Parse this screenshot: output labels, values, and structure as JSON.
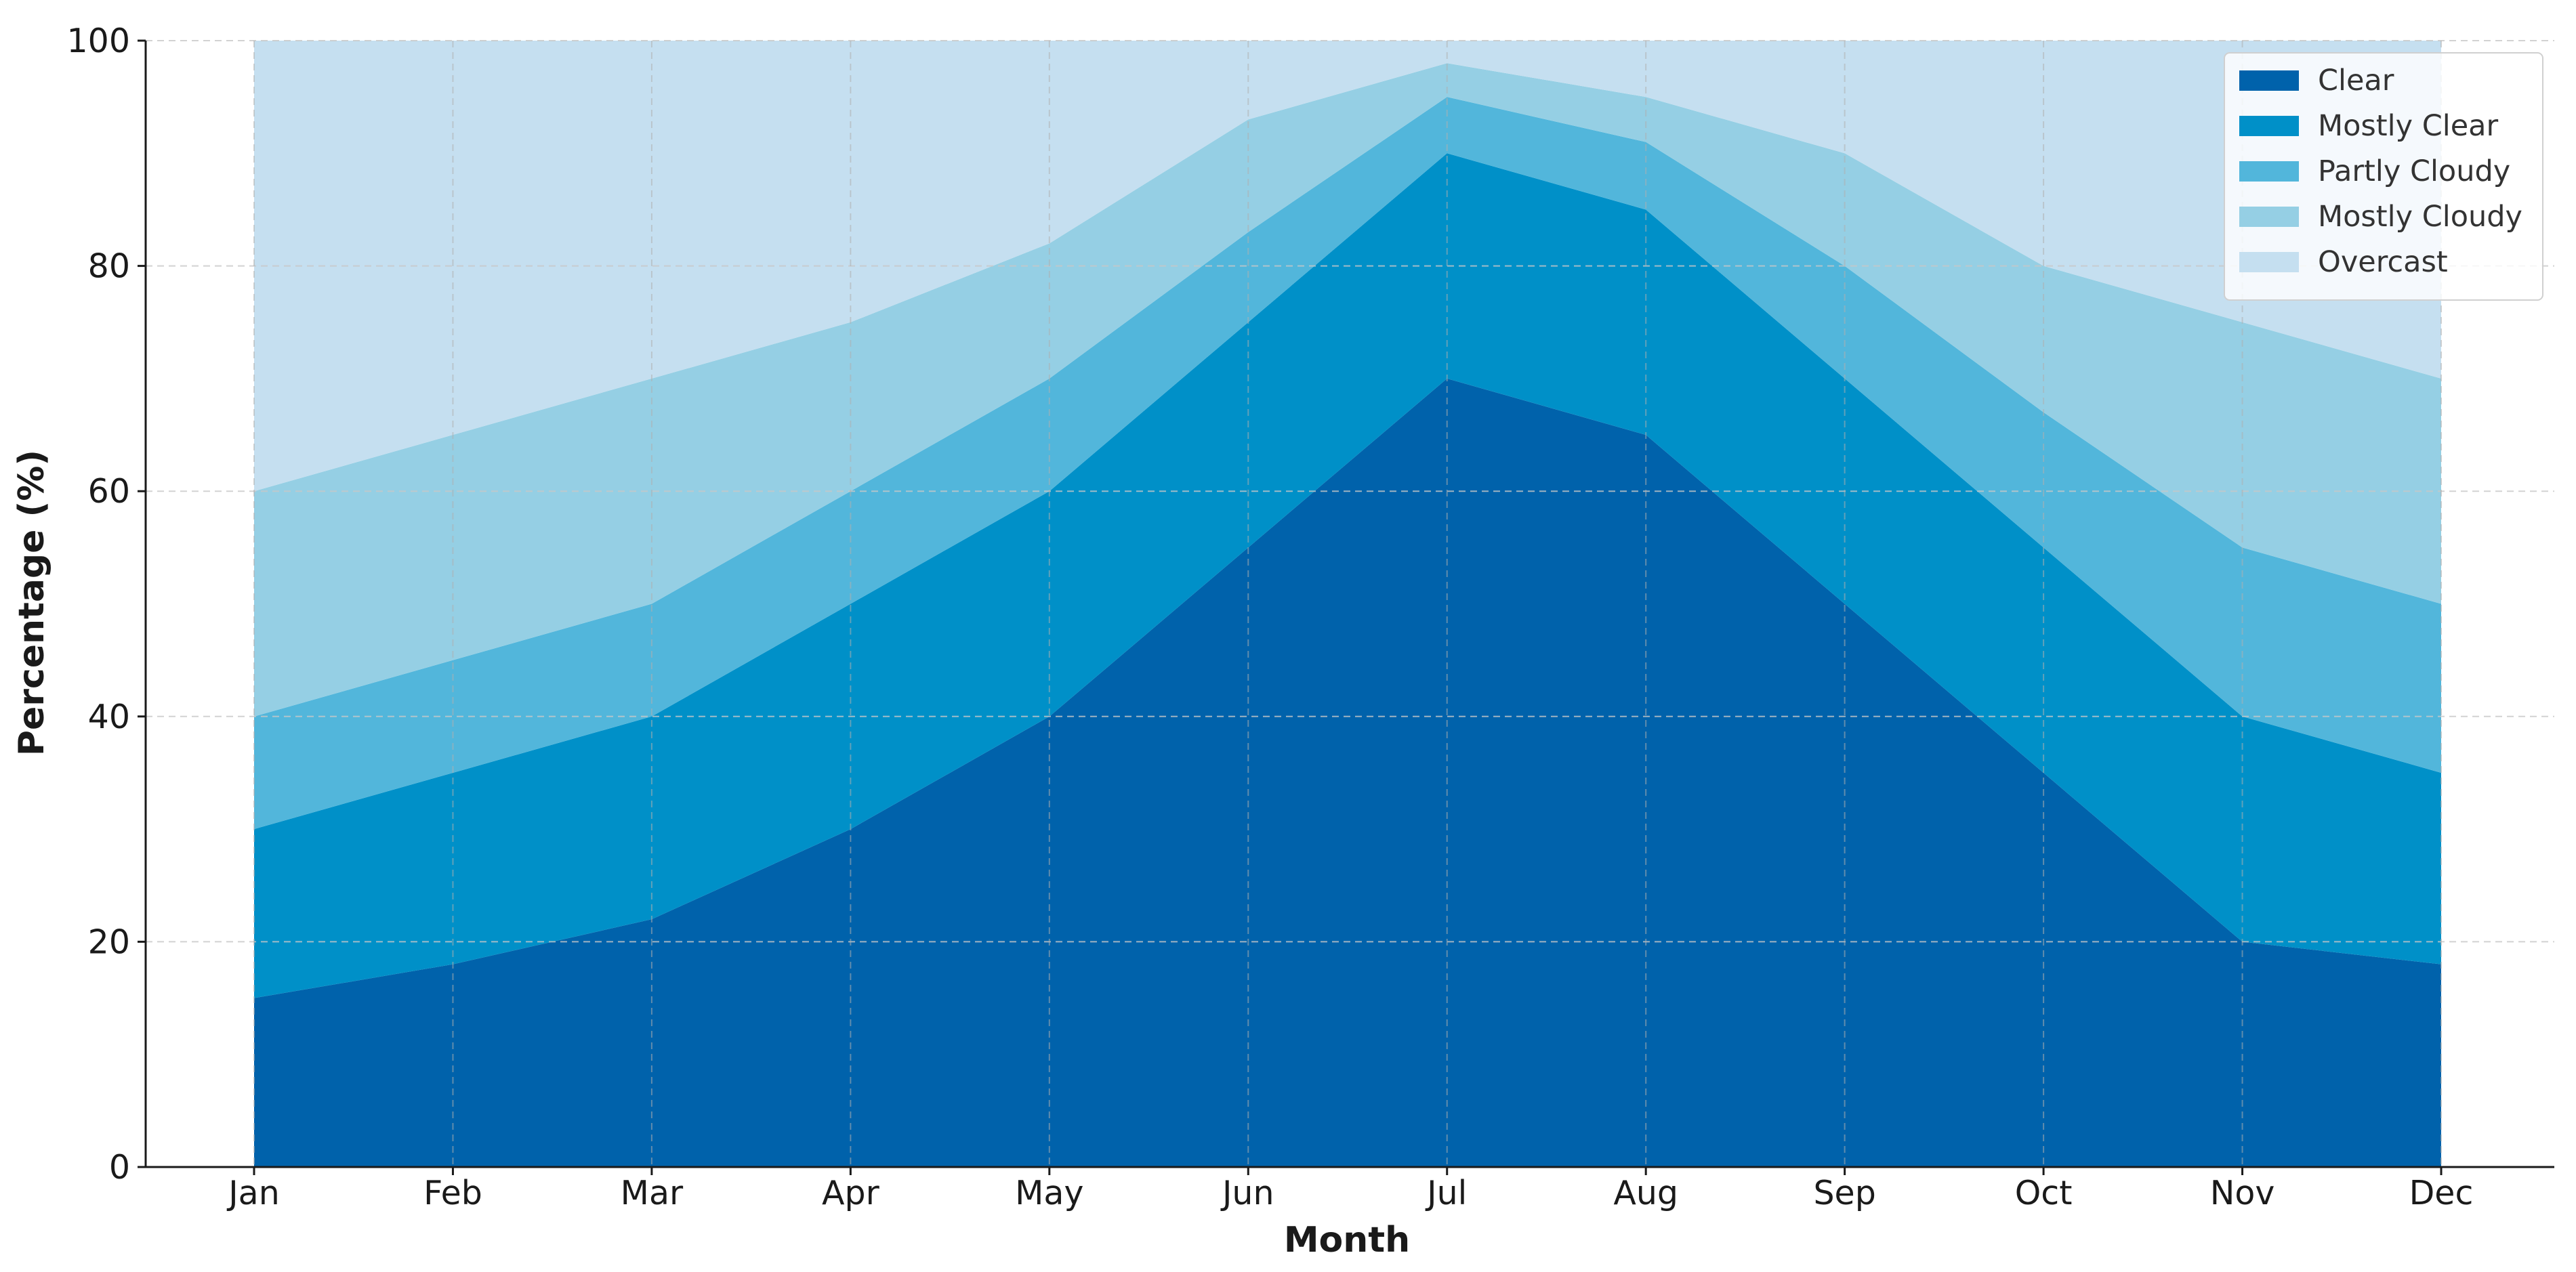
{
  "chart_data": {
    "type": "area",
    "stacked": true,
    "title": "",
    "xlabel": "Month",
    "ylabel": "Percentage (%)",
    "ylim": [
      0,
      100
    ],
    "yticks": [
      0,
      20,
      40,
      60,
      80,
      100
    ],
    "grid": true,
    "legend_position": "top-right",
    "categories": [
      "Jan",
      "Feb",
      "Mar",
      "Apr",
      "May",
      "Jun",
      "Jul",
      "Aug",
      "Sep",
      "Oct",
      "Nov",
      "Dec"
    ],
    "series": [
      {
        "name": "Clear",
        "color": "#0062ab",
        "values": [
          15,
          18,
          22,
          30,
          40,
          55,
          70,
          65,
          50,
          35,
          20,
          18
        ]
      },
      {
        "name": "Mostly Clear",
        "color": "#0090c8",
        "values": [
          15,
          17,
          18,
          20,
          20,
          20,
          20,
          20,
          20,
          20,
          20,
          17
        ]
      },
      {
        "name": "Partly Cloudy",
        "color": "#52b6db",
        "values": [
          10,
          10,
          10,
          10,
          10,
          8,
          5,
          6,
          10,
          12,
          15,
          15
        ]
      },
      {
        "name": "Mostly Cloudy",
        "color": "#95cfe4",
        "values": [
          20,
          20,
          20,
          15,
          12,
          10,
          3,
          4,
          10,
          13,
          20,
          20
        ]
      },
      {
        "name": "Overcast",
        "color": "#c5dff0",
        "values": [
          40,
          35,
          30,
          25,
          18,
          7,
          2,
          5,
          10,
          20,
          25,
          30
        ]
      }
    ]
  }
}
